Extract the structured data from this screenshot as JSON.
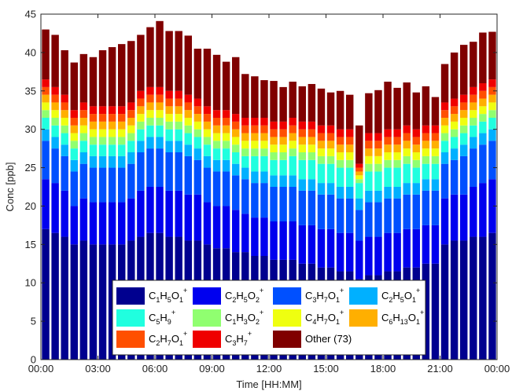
{
  "chart_data": {
    "type": "bar",
    "stacked": true,
    "xlabel": "Time [HH:MM]",
    "ylabel": "Conc  [ppb]",
    "ylim": [
      0,
      45
    ],
    "yticks": [
      "0",
      "5",
      "10",
      "15",
      "20",
      "25",
      "30",
      "35",
      "40",
      "45"
    ],
    "xticks": [
      "00:00",
      "03:00",
      "06:00",
      "09:00",
      "12:00",
      "15:00",
      "18:00",
      "21:00",
      "00:00"
    ],
    "n_bins": 48,
    "legend_position": "bottom-center",
    "series": [
      {
        "name": "C1H5O1+",
        "label_parts": [
          [
            "C",
            "1"
          ],
          [
            "H",
            "5"
          ],
          [
            "O",
            "1"
          ]
        ],
        "sup": "+",
        "color": "#00008f",
        "values": [
          17,
          16.5,
          16,
          15,
          15.5,
          15,
          15,
          15,
          15,
          15.5,
          16,
          16.5,
          16.5,
          16,
          16,
          15.5,
          15.5,
          15,
          14.5,
          14.5,
          14,
          14,
          13.5,
          13.5,
          13,
          13,
          13,
          12.5,
          12.5,
          12,
          12,
          11.5,
          11.5,
          10.5,
          11,
          11,
          11.5,
          11.5,
          12,
          12,
          12.5,
          12.5,
          15,
          15.5,
          15.5,
          16,
          16,
          16.5
        ]
      },
      {
        "name": "C2H5O2+",
        "label_parts": [
          [
            "C",
            "2"
          ],
          [
            "H",
            "5"
          ],
          [
            "O",
            "2"
          ]
        ],
        "sup": "+",
        "color": "#0000ef",
        "values": [
          6.5,
          6.5,
          6,
          5,
          5.5,
          5.5,
          5.5,
          5.5,
          5.5,
          5.5,
          6,
          6,
          6,
          6,
          6,
          6,
          6,
          5.5,
          5.5,
          5.5,
          5.5,
          5,
          5,
          5,
          5,
          5,
          5,
          5,
          5,
          5,
          5,
          5,
          5,
          5,
          5,
          5,
          5,
          5,
          5,
          5,
          5,
          5,
          6,
          6,
          6,
          6.5,
          7,
          7
        ]
      },
      {
        "name": "C3H7O1+",
        "label_parts": [
          [
            "C",
            "3"
          ],
          [
            "H",
            "7"
          ],
          [
            "O",
            "1"
          ]
        ],
        "sup": "+",
        "color": "#0050ff",
        "values": [
          5,
          4.5,
          4.5,
          4.5,
          4.5,
          4.5,
          4.5,
          4.5,
          4.5,
          4.5,
          5,
          5,
          5,
          5,
          5,
          5,
          4.5,
          4.5,
          4.5,
          4.5,
          4.5,
          4.5,
          4.5,
          4.5,
          4.5,
          4.5,
          4.5,
          4.5,
          4.5,
          4.5,
          4.5,
          4.5,
          4.5,
          4,
          4.5,
          4.5,
          4.5,
          4.5,
          4.5,
          4.5,
          4.5,
          4.5,
          4.5,
          4.5,
          5,
          5,
          5,
          5
        ]
      },
      {
        "name": "C2H5O1+",
        "label_parts": [
          [
            "C",
            "2"
          ],
          [
            "H",
            "5"
          ],
          [
            "O",
            "1"
          ]
        ],
        "sup": "+",
        "color": "#00b0ff",
        "values": [
          1.5,
          1.5,
          1.5,
          1.5,
          1.5,
          1.5,
          1.5,
          1.5,
          1.5,
          1.5,
          1.5,
          1.5,
          1.5,
          1.5,
          1.5,
          1.5,
          1.5,
          1.5,
          1.5,
          1.5,
          1.5,
          1.5,
          1.5,
          1.5,
          1.5,
          1.5,
          1.5,
          1.5,
          1.5,
          1.5,
          1.5,
          1.5,
          1.5,
          1.5,
          1.5,
          1.5,
          1.5,
          1.5,
          1.5,
          1.5,
          1.5,
          1.5,
          1.5,
          1.5,
          1.5,
          1.5,
          1.5,
          1.5
        ]
      },
      {
        "name": "C5H9+",
        "label_parts": [
          [
            "C",
            "5"
          ],
          [
            "H",
            "9"
          ]
        ],
        "sup": "+",
        "color": "#20ffdf",
        "values": [
          1.5,
          1.5,
          1.5,
          1.5,
          1.5,
          1.5,
          1.5,
          1.5,
          1.5,
          1.5,
          1.5,
          1.5,
          1.5,
          1.5,
          1.5,
          1.5,
          1.5,
          1.5,
          1.5,
          1.5,
          1.5,
          1.5,
          2,
          2,
          2,
          2,
          2.5,
          2.5,
          2.5,
          2.5,
          2.5,
          2.5,
          2.5,
          2,
          2.5,
          2.5,
          2.5,
          2.5,
          2.5,
          2,
          2,
          2,
          1.5,
          1.5,
          1.5,
          1.5,
          1.5,
          1.5
        ]
      },
      {
        "name": "C1H3O2+",
        "label_parts": [
          [
            "C",
            "1"
          ],
          [
            "H",
            "3"
          ],
          [
            "O",
            "2"
          ]
        ],
        "sup": "+",
        "color": "#90ff70",
        "values": [
          1,
          1,
          1,
          1,
          1,
          1,
          1,
          1,
          1,
          1,
          1,
          1,
          1,
          1,
          1,
          1,
          1,
          1,
          1,
          1,
          1,
          1,
          1,
          1,
          1,
          1,
          1,
          1,
          1,
          1,
          1,
          1,
          1,
          0.5,
          1,
          1,
          1,
          1,
          1,
          1,
          1,
          1,
          1,
          1,
          1,
          1,
          1,
          1
        ]
      },
      {
        "name": "C4H7O1+",
        "label_parts": [
          [
            "C",
            "4"
          ],
          [
            "H",
            "7"
          ],
          [
            "O",
            "1"
          ]
        ],
        "sup": "+",
        "color": "#efff10",
        "values": [
          1,
          1,
          1,
          1,
          1,
          1,
          1,
          1,
          1,
          1,
          1,
          1,
          1,
          1,
          1,
          1,
          1,
          1,
          1,
          1,
          1,
          1,
          1,
          1,
          1,
          1,
          1,
          1,
          1,
          1,
          1,
          1,
          1,
          0.5,
          1,
          1,
          1,
          1,
          1,
          1,
          1,
          1,
          1,
          1,
          1,
          1,
          1,
          1
        ]
      },
      {
        "name": "C6H13O1+",
        "label_parts": [
          [
            "C",
            "6"
          ],
          [
            "H",
            "13"
          ],
          [
            "O",
            "1"
          ]
        ],
        "sup": "+",
        "color": "#ffaf00",
        "values": [
          1,
          1,
          1,
          1,
          1,
          1,
          1,
          1,
          1,
          1,
          1,
          1,
          1,
          1,
          1,
          1,
          1,
          1,
          1,
          1,
          1,
          1,
          1,
          1,
          1,
          1,
          1,
          1,
          1,
          1,
          1,
          1,
          1,
          0.5,
          1,
          1,
          1,
          1,
          1,
          1,
          1,
          1,
          1,
          1,
          1,
          1,
          1,
          1
        ]
      },
      {
        "name": "C2H7O1+",
        "label_parts": [
          [
            "C",
            "2"
          ],
          [
            "H",
            "7"
          ],
          [
            "O",
            "1"
          ]
        ],
        "sup": "+",
        "color": "#ff4f00",
        "values": [
          1,
          1,
          1,
          1,
          1,
          1,
          1,
          1,
          1,
          1,
          1,
          1,
          1,
          1,
          1,
          1,
          1,
          1,
          1,
          1,
          1,
          1,
          1,
          1,
          1,
          1,
          1,
          1,
          1,
          1,
          1,
          1,
          1,
          0.5,
          1,
          1,
          1,
          1,
          1,
          1,
          1,
          1,
          1,
          1,
          1,
          1,
          1,
          1
        ]
      },
      {
        "name": "C3H7+",
        "label_parts": [
          [
            "C",
            "3"
          ],
          [
            "H",
            "7"
          ]
        ],
        "sup": "+",
        "color": "#ef0000",
        "values": [
          1,
          1,
          1,
          1,
          1,
          1,
          1,
          1,
          1,
          1,
          1,
          1,
          1,
          1,
          1,
          1,
          1,
          1,
          1,
          1,
          1,
          1,
          1,
          1,
          1,
          1,
          1,
          1,
          1,
          1,
          1,
          1,
          1,
          0.5,
          1,
          1,
          1,
          1,
          1,
          1,
          1,
          1,
          1,
          1,
          1,
          1,
          1,
          1
        ]
      },
      {
        "name": "Other (73)",
        "label_parts": [
          [
            "Other (73)",
            ""
          ]
        ],
        "sup": "",
        "color": "#800000",
        "values": [
          6.5,
          6.8,
          5.8,
          6.2,
          6.3,
          6.4,
          7.3,
          7.7,
          8.1,
          8.0,
          7.3,
          7.8,
          8.6,
          7.8,
          7.8,
          7.7,
          6.5,
          7.5,
          7.2,
          6.3,
          7.4,
          5.7,
          5.4,
          4.9,
          5.3,
          4.5,
          4.7,
          4.6,
          4.9,
          4.8,
          4.3,
          5.0,
          4.5,
          5.0,
          5.2,
          5.6,
          6.2,
          5.4,
          5.6,
          4.8,
          5.1,
          3.7,
          5.0,
          6.0,
          6.5,
          5.9,
          6.6,
          6.2
        ]
      }
    ]
  }
}
